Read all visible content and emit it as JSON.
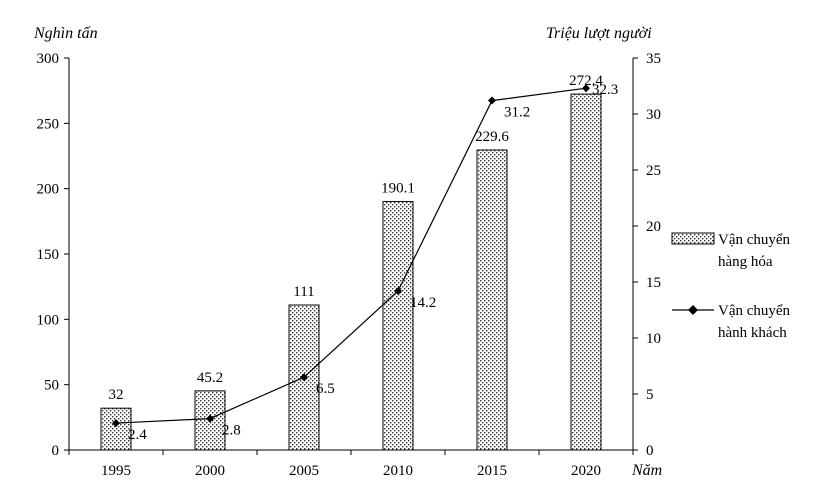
{
  "chart_data": {
    "type": "bar+line",
    "categories": [
      "1995",
      "2000",
      "2005",
      "2010",
      "2015",
      "2020"
    ],
    "series": [
      {
        "name": "Vận chuyển hàng hóa",
        "legend_lines": [
          "Vận chuyển",
          "hàng hóa"
        ],
        "type": "bar",
        "axis": "left",
        "values": [
          32,
          45.2,
          111,
          190.1,
          229.6,
          272.4
        ],
        "labels": [
          "32",
          "45.2",
          "111",
          "190.1",
          "229.6",
          "272.4"
        ]
      },
      {
        "name": "Vận chuyển hành khách",
        "legend_lines": [
          "Vận chuyển",
          "hành khách"
        ],
        "type": "line",
        "axis": "right",
        "values": [
          2.4,
          2.8,
          6.5,
          14.2,
          31.2,
          32.3
        ],
        "labels": [
          "2.4",
          "2.8",
          "6.5",
          "14.2",
          "31.2",
          "32.3"
        ]
      }
    ],
    "y_left": {
      "label": "Nghìn tấn",
      "ylim": [
        0,
        300
      ],
      "ticks": [
        "0",
        "50",
        "100",
        "150",
        "200",
        "250",
        "300"
      ]
    },
    "y_right": {
      "label": "Triệu lượt người",
      "ylim": [
        0,
        35
      ],
      "ticks": [
        "0",
        "5",
        "10",
        "15",
        "20",
        "25",
        "30",
        "35"
      ]
    },
    "x_axis": {
      "label": "Năm"
    },
    "grid": false,
    "legend_position": "right"
  }
}
